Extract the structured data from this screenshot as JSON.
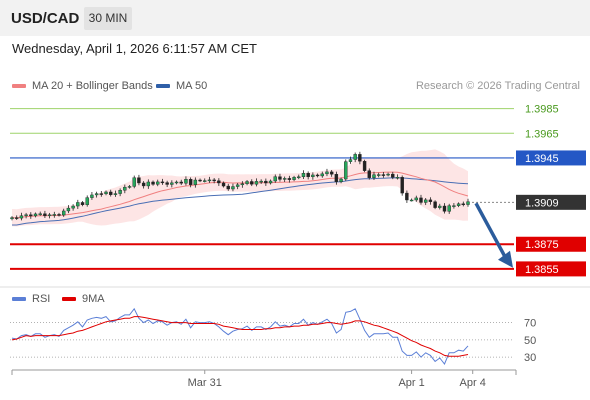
{
  "header": {
    "symbol": "USD/CAD",
    "timeframe": "30 MIN",
    "datetime": "Wednesday, April 1, 2026 6:11:57 AM CET"
  },
  "legend": {
    "ma20": {
      "label": "MA 20 + Bollinger Bands",
      "color": "#f08080"
    },
    "ma50": {
      "label": "MA 50",
      "color": "#2f5fa8"
    },
    "credit": "Research © 2026 Trading Central"
  },
  "rsi_legend": {
    "rsi": {
      "label": "RSI",
      "color": "#5b7fd6"
    },
    "ma9": {
      "label": "9MA",
      "color": "#e00000"
    }
  },
  "chart_data": {
    "type": "candlestick",
    "price_range": [
      1.3846,
      1.3992
    ],
    "levels": [
      {
        "value": 1.3985,
        "label": "1.3985",
        "kind": "target",
        "color": "#8bc34a"
      },
      {
        "value": 1.3965,
        "label": "1.3965",
        "kind": "target",
        "color": "#8bc34a"
      },
      {
        "value": 1.3945,
        "label": "1.3945",
        "kind": "pivot",
        "color": "#2457c5"
      },
      {
        "value": 1.3909,
        "label": "1.3909",
        "kind": "last",
        "color": "#333333"
      },
      {
        "value": 1.3875,
        "label": "1.3875",
        "kind": "support",
        "color": "#e00000"
      },
      {
        "value": 1.3855,
        "label": "1.3855",
        "kind": "support",
        "color": "#e00000"
      }
    ],
    "x_labels": [
      {
        "label": "Mar 31",
        "index": 41
      },
      {
        "label": "Apr 1",
        "index": 85
      },
      {
        "label": "Apr 4",
        "index": 98
      }
    ],
    "rsi_levels": [
      {
        "value": 70,
        "label": "70"
      },
      {
        "value": 50,
        "label": "50"
      },
      {
        "value": 30,
        "label": "30"
      }
    ],
    "rsi_range": [
      22,
      80
    ],
    "close": [
      1.38966,
      1.38962,
      1.38981,
      1.38989,
      1.3898,
      1.38996,
      1.38997,
      1.38981,
      1.38989,
      1.38992,
      1.38987,
      1.3902,
      1.39043,
      1.3906,
      1.39089,
      1.3907,
      1.39128,
      1.3915,
      1.39161,
      1.39159,
      1.39174,
      1.39152,
      1.39161,
      1.39188,
      1.39213,
      1.39219,
      1.39289,
      1.39247,
      1.39223,
      1.39255,
      1.39236,
      1.39256,
      1.3925,
      1.39235,
      1.39248,
      1.39255,
      1.39245,
      1.39277,
      1.39233,
      1.39271,
      1.39266,
      1.39266,
      1.39272,
      1.39265,
      1.39247,
      1.39222,
      1.39198,
      1.39218,
      1.39232,
      1.39241,
      1.39259,
      1.39237,
      1.3926,
      1.39262,
      1.39247,
      1.39263,
      1.39298,
      1.39276,
      1.39284,
      1.39274,
      1.39293,
      1.39297,
      1.39326,
      1.39297,
      1.39312,
      1.39304,
      1.39321,
      1.39337,
      1.39318,
      1.39257,
      1.39279,
      1.3942,
      1.39437,
      1.39479,
      1.39423,
      1.39347,
      1.39289,
      1.39314,
      1.39315,
      1.39313,
      1.39319,
      1.39293,
      1.39293,
      1.39165,
      1.39109,
      1.39109,
      1.39126,
      1.39089,
      1.3911,
      1.39095,
      1.39047,
      1.3906,
      1.39017,
      1.39063,
      1.39063,
      1.39078,
      1.39072,
      1.39095
    ],
    "rsi": [
      52,
      51,
      55,
      56,
      54,
      57,
      57,
      53,
      55,
      56,
      54,
      61,
      64,
      67,
      71,
      65,
      73,
      75,
      76,
      75,
      77,
      71,
      72,
      76,
      79,
      79,
      86,
      75,
      70,
      73,
      69,
      72,
      71,
      67,
      70,
      71,
      68,
      74,
      64,
      71,
      70,
      70,
      71,
      69,
      65,
      60,
      56,
      60,
      62,
      63,
      66,
      61,
      65,
      65,
      62,
      65,
      71,
      66,
      67,
      65,
      69,
      69,
      74,
      67,
      70,
      68,
      71,
      74,
      69,
      58,
      62,
      82,
      83,
      86,
      74,
      61,
      53,
      57,
      57,
      57,
      58,
      53,
      53,
      37,
      32,
      32,
      36,
      30,
      35,
      32,
      25,
      29,
      22,
      35,
      35,
      38,
      37,
      43
    ],
    "rsi_ma": [
      50,
      51,
      53,
      55,
      54,
      55,
      55,
      55,
      55,
      55,
      55,
      56,
      57,
      58,
      60,
      61,
      63,
      65,
      67,
      69,
      71,
      72,
      73,
      74,
      75,
      75,
      77,
      77,
      76,
      75,
      74,
      73,
      72,
      71,
      70,
      70,
      70,
      70,
      69,
      69,
      69,
      69,
      69,
      69,
      68,
      66,
      65,
      64,
      63,
      62,
      62,
      62,
      62,
      62,
      63,
      63,
      64,
      64,
      65,
      65,
      66,
      66,
      67,
      67,
      68,
      68,
      69,
      70,
      70,
      69,
      68,
      69,
      70,
      72,
      72,
      71,
      69,
      67,
      66,
      64,
      62,
      60,
      58,
      55,
      52,
      49,
      47,
      44,
      42,
      40,
      37,
      35,
      32,
      31,
      31,
      31,
      32,
      33
    ]
  }
}
